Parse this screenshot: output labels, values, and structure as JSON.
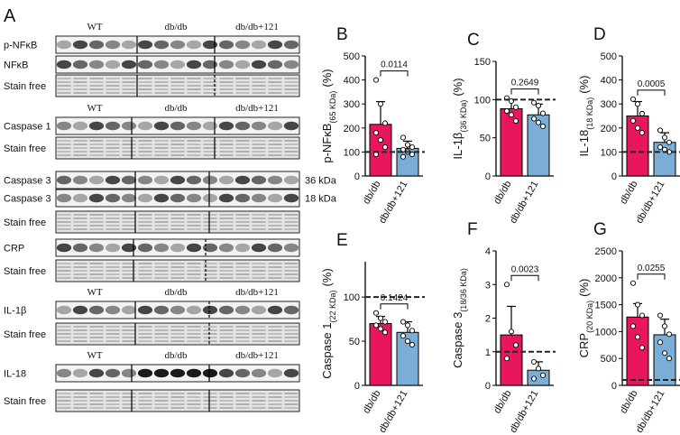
{
  "blot": {
    "letter": "A",
    "panels": [
      {
        "groups": [
          "WT",
          "db/db",
          "db/db+121"
        ],
        "rows": [
          {
            "label": "p-NFκB"
          },
          {
            "label": "NFκB"
          },
          {
            "label": "Stain free"
          }
        ]
      },
      {
        "groups": [
          "WT",
          "db/db",
          "db/db+121"
        ],
        "rows": [
          {
            "label": "Caspase 1"
          },
          {
            "label": "Stain free"
          }
        ]
      },
      {
        "rows": [
          {
            "label": "Caspase 3",
            "kda": "36 kDa"
          },
          {
            "label": "Caspase 3",
            "kda": "18 kDa"
          },
          {
            "label": "Stain free"
          }
        ]
      },
      {
        "rows": [
          {
            "label": "CRP"
          },
          {
            "label": "Stain free"
          }
        ]
      },
      {
        "groups": [
          "WT",
          "db/db",
          "db/db+121"
        ],
        "rows": [
          {
            "label": "IL-1β"
          },
          {
            "label": "Stain free"
          }
        ]
      },
      {
        "groups": [
          "WT",
          "db/db",
          "db/db+121"
        ],
        "rows": [
          {
            "label": "IL-18"
          },
          {
            "label": "Stain free"
          }
        ]
      }
    ]
  },
  "chart_data": [
    {
      "type": "bar",
      "letter": "B",
      "ylabel": "p-NFκB",
      "ylabel_sub": "(65 KDa)",
      "ylabel_unit": "(%)",
      "categories": [
        "db/db",
        "db/db+121"
      ],
      "colors": [
        "#e8175d",
        "#7aaed6"
      ],
      "values": [
        215,
        115
      ],
      "errors": [
        95,
        30
      ],
      "points": [
        [
          400,
          300,
          220,
          180,
          150,
          120,
          90
        ],
        [
          160,
          130,
          120,
          110,
          100,
          90,
          80
        ]
      ],
      "ylim": [
        0,
        500
      ],
      "yticks": [
        0,
        100,
        200,
        300,
        400,
        500
      ],
      "reference": 100,
      "p_value": "0.0114"
    },
    {
      "type": "bar",
      "letter": "C",
      "ylabel": "IL-1β",
      "ylabel_sub": "(36 KDa)",
      "ylabel_unit": "(%)",
      "categories": [
        "db/db",
        "db/db+121"
      ],
      "colors": [
        "#e8175d",
        "#7aaed6"
      ],
      "values": [
        88,
        80
      ],
      "errors": [
        12,
        14
      ],
      "points": [
        [
          102,
          98,
          90,
          85,
          80,
          72
        ],
        [
          96,
          92,
          82,
          75,
          70,
          65
        ]
      ],
      "ylim": [
        0,
        150
      ],
      "yticks": [
        0,
        50,
        100,
        150
      ],
      "reference": 100,
      "p_value": "0.2649"
    },
    {
      "type": "bar",
      "letter": "D",
      "ylabel": "IL-18",
      "ylabel_sub": "(18 KDa)",
      "ylabel_unit": "(%)",
      "categories": [
        "db/db",
        "db/db+121"
      ],
      "colors": [
        "#e8175d",
        "#7aaed6"
      ],
      "values": [
        250,
        140
      ],
      "errors": [
        60,
        40
      ],
      "points": [
        [
          320,
          300,
          260,
          230,
          200,
          180
        ],
        [
          190,
          160,
          140,
          120,
          110,
          100
        ]
      ],
      "ylim": [
        0,
        500
      ],
      "yticks": [
        0,
        100,
        200,
        300,
        400,
        500
      ],
      "reference": 100,
      "p_value": "0.0005"
    },
    {
      "type": "bar",
      "letter": "E",
      "ylabel": "Caspase 1",
      "ylabel_sub": "(22 KDa)",
      "ylabel_unit": "(%)",
      "categories": [
        "db/db",
        "db/db+121"
      ],
      "colors": [
        "#e8175d",
        "#7aaed6"
      ],
      "values": [
        70,
        60
      ],
      "errors": [
        8,
        12
      ],
      "points": [
        [
          82,
          76,
          72,
          68,
          64,
          60
        ],
        [
          72,
          68,
          62,
          56,
          50,
          46
        ]
      ],
      "ylim": [
        0,
        140
      ],
      "yticks": [
        0,
        50,
        100
      ],
      "reference": 100,
      "p_value": "0.1424"
    },
    {
      "type": "bar",
      "letter": "F",
      "ylabel": "Caspase 3",
      "ylabel_sub": "(18/36 KDa)",
      "categories": [
        "db/db",
        "db/db+121"
      ],
      "colors": [
        "#e8175d",
        "#7aaed6"
      ],
      "values": [
        1.5,
        0.45
      ],
      "errors": [
        0.85,
        0.25
      ],
      "points": [
        [
          3,
          1.6,
          1.2,
          0.8
        ],
        [
          0.7,
          0.5,
          0.3,
          0.2
        ]
      ],
      "ylim": [
        0,
        4
      ],
      "yticks": [
        0,
        1,
        2,
        3,
        4
      ],
      "reference": 1,
      "p_value": "0.0023"
    },
    {
      "type": "bar",
      "letter": "G",
      "ylabel": "CRP",
      "ylabel_sub": "(20 KDa)",
      "ylabel_unit": "(%)",
      "categories": [
        "db/db",
        "db/db+121"
      ],
      "colors": [
        "#e8175d",
        "#7aaed6"
      ],
      "values": [
        1270,
        940
      ],
      "errors": [
        250,
        290
      ],
      "points": [
        [
          1900,
          1500,
          1300,
          1100,
          900,
          700
        ],
        [
          1300,
          1100,
          950,
          800,
          600,
          500
        ]
      ],
      "ylim": [
        0,
        2500
      ],
      "yticks": [
        0,
        500,
        1000,
        1500,
        2000,
        2500
      ],
      "reference": 100,
      "p_value": "0.0255"
    }
  ]
}
